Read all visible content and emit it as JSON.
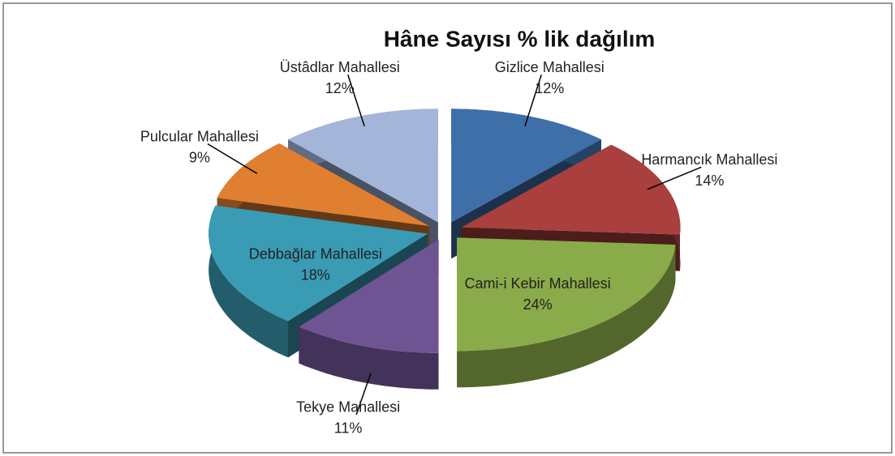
{
  "chart_data": {
    "type": "pie",
    "title": "Hâne Sayısı % lik dağılım",
    "categories": [
      "Gizlice Mahallesi",
      "Harmancık Mahallesi",
      "Cami-i Kebir Mahallesi",
      "Tekye Mahallesi",
      "Debbağlar Mahallesi",
      "Pulcular Mahallesi",
      "Üstâdlar Mahallesi"
    ],
    "values": [
      12,
      14,
      24,
      11,
      18,
      9,
      12
    ],
    "value_labels": [
      "12%",
      "14%",
      "24%",
      "11%",
      "18%",
      "9%",
      "12%"
    ],
    "colors": [
      "#3f6fa9",
      "#a9403d",
      "#8aab4a",
      "#6f5494",
      "#3a9bb4",
      "#e07f30",
      "#a3b6da"
    ]
  }
}
